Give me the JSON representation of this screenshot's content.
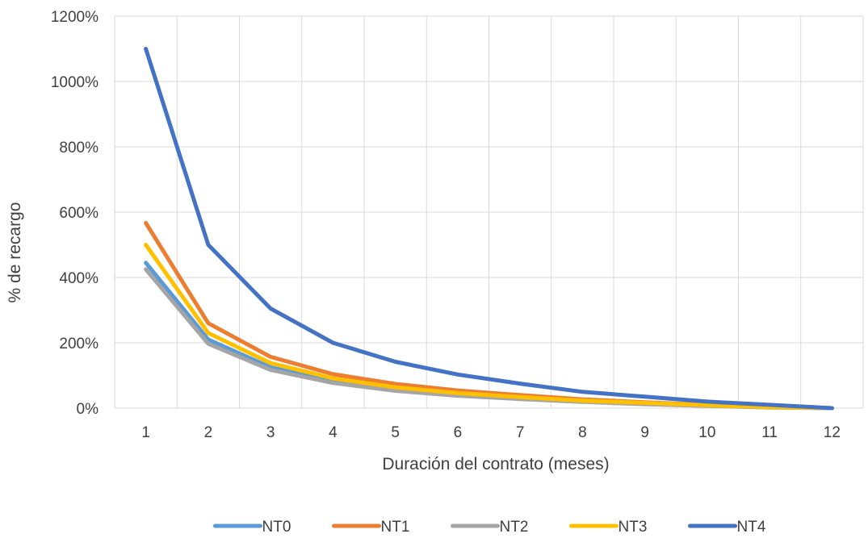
{
  "chart_data": {
    "type": "line",
    "title": "",
    "xlabel": "Duración del contrato (meses)",
    "ylabel": "% de recargo",
    "x": [
      1,
      2,
      3,
      4,
      5,
      6,
      7,
      8,
      9,
      10,
      11,
      12
    ],
    "x_tick_labels": [
      "1",
      "2",
      "3",
      "4",
      "5",
      "6",
      "7",
      "8",
      "9",
      "10",
      "11",
      "12"
    ],
    "y_ticks": [
      0,
      200,
      400,
      600,
      800,
      1000,
      1200
    ],
    "y_tick_labels": [
      "0%",
      "200%",
      "400%",
      "600%",
      "800%",
      "1000%",
      "1200%"
    ],
    "ylim": [
      0,
      1200
    ],
    "grid": true,
    "legend_position": "bottom",
    "series": [
      {
        "name": "NT0",
        "color": "#5B9BD5",
        "values": [
          445,
          210,
          125,
          82,
          57,
          41,
          30,
          21,
          14,
          8,
          3,
          0
        ]
      },
      {
        "name": "NT1",
        "color": "#ED7D31",
        "values": [
          567,
          260,
          157,
          104,
          74,
          54,
          40,
          27,
          18,
          10,
          4,
          0
        ]
      },
      {
        "name": "NT2",
        "color": "#A5A5A5",
        "values": [
          425,
          197,
          117,
          77,
          53,
          38,
          28,
          19,
          12,
          7,
          2,
          0
        ]
      },
      {
        "name": "NT3",
        "color": "#FFC000",
        "values": [
          500,
          230,
          138,
          91,
          64,
          46,
          34,
          23,
          16,
          9,
          3,
          0
        ]
      },
      {
        "name": "NT4",
        "color": "#4472C4",
        "values": [
          1100,
          500,
          305,
          200,
          142,
          103,
          75,
          50,
          35,
          20,
          10,
          0
        ]
      }
    ]
  }
}
